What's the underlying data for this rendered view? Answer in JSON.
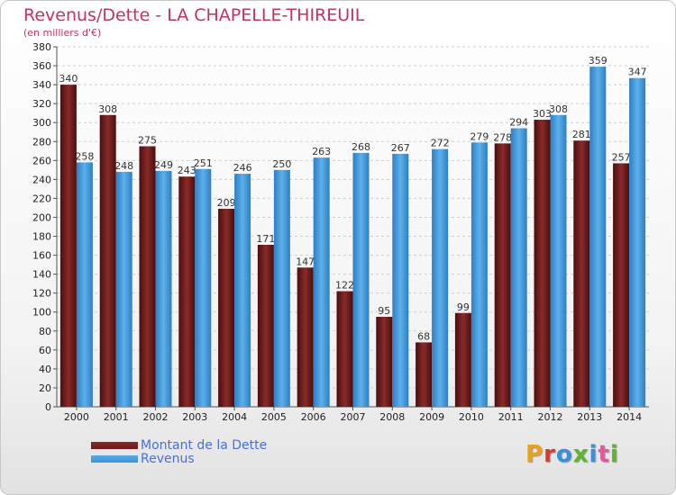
{
  "title": "Revenus/Dette - LA CHAPELLE-THIREUIL",
  "subtitle": "(en milliers d'€)",
  "colors": {
    "dette": "#6b1a1a",
    "revenus": "#3a92d8"
  },
  "legend": [
    {
      "key": "dette",
      "label": "Montant de la Dette"
    },
    {
      "key": "revenus",
      "label": "Revenus"
    }
  ],
  "logo": "Proxiti",
  "chart_data": {
    "type": "bar",
    "categories": [
      "2000",
      "2001",
      "2002",
      "2003",
      "2004",
      "2005",
      "2006",
      "2007",
      "2008",
      "2009",
      "2010",
      "2011",
      "2012",
      "2013",
      "2014"
    ],
    "series": [
      {
        "name": "Montant de la Dette",
        "values": [
          340,
          308,
          275,
          243,
          209,
          171,
          147,
          122,
          95,
          68,
          99,
          278,
          303,
          281,
          257
        ]
      },
      {
        "name": "Revenus",
        "values": [
          258,
          248,
          249,
          251,
          246,
          250,
          263,
          268,
          267,
          272,
          279,
          294,
          308,
          359,
          347
        ]
      }
    ],
    "ylim": [
      0,
      380
    ],
    "yticks": [
      0,
      20,
      40,
      60,
      80,
      100,
      120,
      140,
      160,
      180,
      200,
      220,
      240,
      260,
      280,
      300,
      320,
      340,
      360,
      380
    ],
    "grid": true,
    "legend_position": "bottom-left"
  }
}
